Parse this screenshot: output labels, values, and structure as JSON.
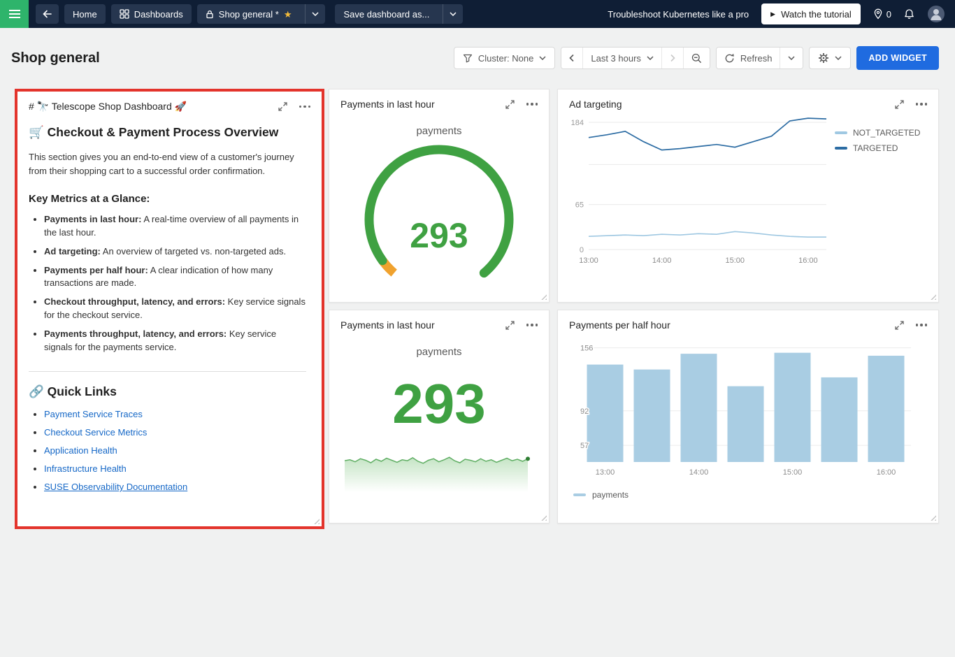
{
  "colors": {
    "primary_button": "#1f6be0",
    "highlight_border": "#e3342c",
    "menu_green": "#2eb46b"
  },
  "topbar": {
    "home_label": "Home",
    "dashboards_label": "Dashboards",
    "current_dashboard": "Shop general *",
    "save_as_label": "Save dashboard as...",
    "promo_text": "Troubleshoot Kubernetes like a pro",
    "watch_button": "Watch the tutorial",
    "pin_count": "0"
  },
  "header": {
    "title": "Shop general",
    "cluster_filter": "Cluster: None",
    "time_range": "Last 3 hours",
    "refresh_label": "Refresh",
    "add_widget_label": "ADD WIDGET"
  },
  "widgets": {
    "markdown": {
      "title": "# 🔭 Telescope Shop Dashboard 🚀",
      "heading": "🛒 Checkout & Payment Process Overview",
      "intro": "This section gives you an end-to-end view of a customer's journey from their shopping cart to a successful order confirmation.",
      "metrics_heading": "Key Metrics at a Glance:",
      "bullets": [
        {
          "bold": "Payments in last hour:",
          "text": " A real-time overview of all payments in the last hour."
        },
        {
          "bold": "Ad targeting:",
          "text": " An overview of targeted vs. non-targeted ads."
        },
        {
          "bold": "Payments per half hour:",
          "text": " A clear indication of how many transactions are made."
        },
        {
          "bold": "Checkout throughput, latency, and errors:",
          "text": " Key service signals for the checkout service."
        },
        {
          "bold": "Payments throughput, latency, and errors:",
          "text": " Key service signals for the payments service."
        }
      ],
      "quick_links_heading": "🔗 Quick Links",
      "links": [
        "Payment Service Traces",
        "Checkout Service Metrics",
        "Application Health",
        "Infrastructure Health",
        "SUSE Observability Documentation"
      ]
    },
    "gauge": {
      "title": "Payments in last hour",
      "series_label": "payments"
    },
    "line": {
      "title": "Ad targeting"
    },
    "number": {
      "title": "Payments in last hour",
      "series_label": "payments"
    },
    "bar": {
      "title": "Payments per half hour"
    }
  },
  "chart_data": [
    {
      "id": "payments_gauge",
      "type": "gauge",
      "title": "Payments in last hour",
      "label": "payments",
      "value": 293,
      "color": "#3fa142",
      "accent_color": "#f0a22e"
    },
    {
      "id": "ad_targeting",
      "type": "line",
      "title": "Ad targeting",
      "x": [
        "13:00",
        "13:15",
        "13:30",
        "13:45",
        "14:00",
        "14:15",
        "14:30",
        "14:45",
        "15:00",
        "15:15",
        "15:30",
        "15:45",
        "16:00",
        "16:15"
      ],
      "series": [
        {
          "name": "NOT_TARGETED",
          "color": "#9fc8e2",
          "values": [
            19,
            20,
            21,
            20,
            22,
            21,
            23,
            22,
            26,
            24,
            21,
            19,
            18,
            18
          ]
        },
        {
          "name": "TARGETED",
          "color": "#2c6ca3",
          "values": [
            162,
            166,
            171,
            156,
            144,
            146,
            149,
            152,
            148,
            156,
            164,
            186,
            190,
            189
          ]
        }
      ],
      "ylim": [
        0,
        184
      ],
      "yticks": [
        184,
        65,
        0
      ],
      "gridlines": [
        184,
        123,
        65,
        0
      ],
      "xticks": [
        "13:00",
        "14:00",
        "15:00",
        "16:00"
      ],
      "legend_position": "right",
      "grid": true
    },
    {
      "id": "payments_number",
      "type": "area",
      "title": "Payments in last hour",
      "label": "payments",
      "value": 293,
      "value_color": "#3fa142",
      "color": "#5fae63",
      "sparkline": [
        289,
        291,
        287,
        293,
        290,
        285,
        292,
        288,
        294,
        290,
        286,
        291,
        289,
        295,
        288,
        284,
        290,
        293,
        287,
        291,
        296,
        289,
        285,
        292,
        290,
        287,
        293,
        288,
        291,
        286,
        290,
        294,
        289,
        292,
        288,
        293
      ]
    },
    {
      "id": "payments_per_half_hour",
      "type": "bar",
      "title": "Payments per half hour",
      "categories": [
        "13:00",
        "13:30",
        "14:00",
        "14:30",
        "15:00",
        "15:30",
        "16:00"
      ],
      "values": [
        139,
        134,
        150,
        117,
        151,
        126,
        148
      ],
      "yticks": [
        156,
        92,
        57
      ],
      "ylim": [
        40,
        165
      ],
      "xticks": [
        "13:00",
        "14:00",
        "15:00",
        "16:00"
      ],
      "color": "#a9cde3",
      "legend": "payments",
      "grid": true
    }
  ]
}
